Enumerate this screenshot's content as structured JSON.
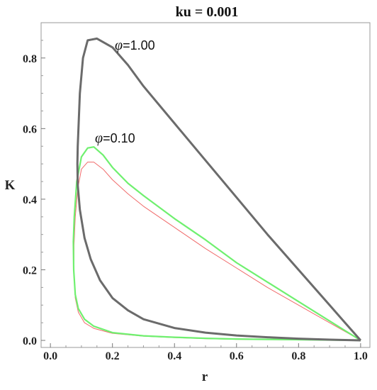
{
  "chart_data": {
    "type": "line",
    "title": "ku = 0.001",
    "xlabel": "r",
    "ylabel": "K",
    "xlim": [
      -0.03,
      1.03
    ],
    "ylim": [
      -0.02,
      0.9
    ],
    "xticks": [
      "0.0",
      "0.2",
      "0.4",
      "0.6",
      "0.8",
      "1.0"
    ],
    "yticks": [
      "0.0",
      "0.2",
      "0.4",
      "0.6",
      "0.8"
    ],
    "grid": false,
    "legend": "none",
    "annotations": [
      {
        "symbol": "φ",
        "text": "=1.00",
        "series_index": 0
      },
      {
        "symbol": "φ",
        "text": "=0.10",
        "series_index": 1
      }
    ],
    "series": [
      {
        "color": "#6b6b6b",
        "points": [
          [
            1.0,
            0.0
          ],
          [
            0.95,
            0.05
          ],
          [
            0.9,
            0.1
          ],
          [
            0.8,
            0.2
          ],
          [
            0.7,
            0.3
          ],
          [
            0.6,
            0.405
          ],
          [
            0.5,
            0.51
          ],
          [
            0.4,
            0.615
          ],
          [
            0.3,
            0.72
          ],
          [
            0.25,
            0.78
          ],
          [
            0.2,
            0.83
          ],
          [
            0.15,
            0.855
          ],
          [
            0.12,
            0.85
          ],
          [
            0.105,
            0.8
          ],
          [
            0.095,
            0.7
          ],
          [
            0.088,
            0.55
          ],
          [
            0.087,
            0.5
          ],
          [
            0.088,
            0.44
          ],
          [
            0.095,
            0.37
          ],
          [
            0.11,
            0.29
          ],
          [
            0.13,
            0.23
          ],
          [
            0.16,
            0.17
          ],
          [
            0.2,
            0.12
          ],
          [
            0.25,
            0.085
          ],
          [
            0.3,
            0.06
          ],
          [
            0.4,
            0.035
          ],
          [
            0.5,
            0.022
          ],
          [
            0.6,
            0.014
          ],
          [
            0.7,
            0.009
          ],
          [
            0.8,
            0.005
          ],
          [
            0.9,
            0.002
          ],
          [
            1.0,
            0.0
          ]
        ]
      },
      {
        "color": "#6ff06f",
        "points": [
          [
            1.0,
            0.0
          ],
          [
            0.9,
            0.055
          ],
          [
            0.8,
            0.11
          ],
          [
            0.7,
            0.165
          ],
          [
            0.6,
            0.22
          ],
          [
            0.5,
            0.285
          ],
          [
            0.4,
            0.345
          ],
          [
            0.3,
            0.41
          ],
          [
            0.25,
            0.445
          ],
          [
            0.2,
            0.49
          ],
          [
            0.17,
            0.525
          ],
          [
            0.14,
            0.548
          ],
          [
            0.12,
            0.545
          ],
          [
            0.1,
            0.52
          ],
          [
            0.085,
            0.45
          ],
          [
            0.077,
            0.35
          ],
          [
            0.074,
            0.28
          ],
          [
            0.075,
            0.2
          ],
          [
            0.08,
            0.13
          ],
          [
            0.09,
            0.09
          ],
          [
            0.11,
            0.06
          ],
          [
            0.14,
            0.04
          ],
          [
            0.2,
            0.022
          ],
          [
            0.3,
            0.013
          ],
          [
            0.4,
            0.009
          ],
          [
            0.5,
            0.006
          ],
          [
            0.6,
            0.004
          ],
          [
            0.7,
            0.003
          ],
          [
            0.8,
            0.002
          ],
          [
            0.9,
            0.001
          ],
          [
            1.0,
            0.0
          ]
        ]
      },
      {
        "color": "#f06a6a",
        "points": [
          [
            1.0,
            0.0
          ],
          [
            0.9,
            0.05
          ],
          [
            0.8,
            0.1
          ],
          [
            0.7,
            0.15
          ],
          [
            0.6,
            0.205
          ],
          [
            0.5,
            0.26
          ],
          [
            0.4,
            0.32
          ],
          [
            0.3,
            0.38
          ],
          [
            0.25,
            0.415
          ],
          [
            0.2,
            0.455
          ],
          [
            0.17,
            0.485
          ],
          [
            0.14,
            0.505
          ],
          [
            0.12,
            0.505
          ],
          [
            0.1,
            0.485
          ],
          [
            0.088,
            0.43
          ],
          [
            0.08,
            0.35
          ],
          [
            0.076,
            0.27
          ],
          [
            0.076,
            0.18
          ],
          [
            0.08,
            0.12
          ],
          [
            0.09,
            0.08
          ],
          [
            0.11,
            0.05
          ],
          [
            0.14,
            0.034
          ],
          [
            0.2,
            0.02
          ],
          [
            0.3,
            0.012
          ],
          [
            0.4,
            0.008
          ],
          [
            0.5,
            0.005
          ],
          [
            0.6,
            0.003
          ],
          [
            0.7,
            0.002
          ],
          [
            0.8,
            0.0015
          ],
          [
            0.9,
            0.001
          ],
          [
            1.0,
            0.0
          ]
        ]
      }
    ]
  }
}
